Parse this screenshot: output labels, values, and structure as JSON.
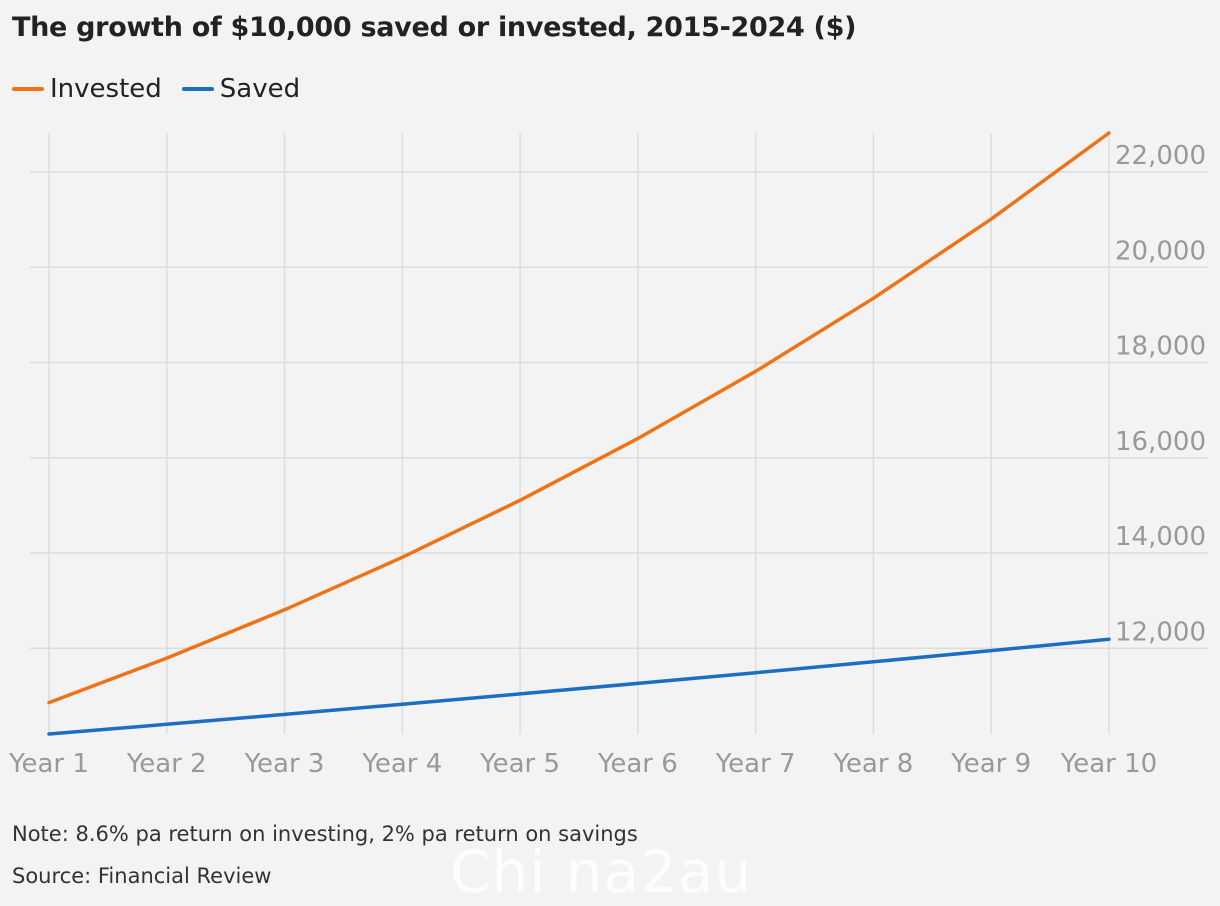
{
  "chart_data": {
    "type": "line",
    "title": "The growth of $10,000 saved or invested, 2015-2024 ($)",
    "categories": [
      "Year 1",
      "Year 2",
      "Year 3",
      "Year 4",
      "Year 5",
      "Year 6",
      "Year 7",
      "Year 8",
      "Year 9",
      "Year 10"
    ],
    "series": [
      {
        "name": "Invested",
        "color": "#ee7317",
        "values": [
          10860,
          11794,
          12808,
          13910,
          15106,
          16405,
          17816,
          19348,
          21012,
          22819
        ]
      },
      {
        "name": "Saved",
        "color": "#1b6ec2",
        "values": [
          10200,
          10404,
          10612,
          10824,
          11041,
          11262,
          11487,
          11717,
          11951,
          12190
        ]
      }
    ],
    "yticks": [
      12000,
      14000,
      16000,
      18000,
      20000,
      22000
    ],
    "ytick_labels": [
      "12,000",
      "14,000",
      "16,000",
      "18,000",
      "20,000",
      "22,000"
    ],
    "ylim": [
      10200,
      22819
    ],
    "y_axis_side": "right",
    "grid": true,
    "legend_position": "top-left",
    "xlabel": "",
    "ylabel": ""
  },
  "note": "Note: 8.6% pa return on investing, 2% pa return on savings",
  "source": "Source: Financial Review",
  "watermark": "Chi na2au"
}
